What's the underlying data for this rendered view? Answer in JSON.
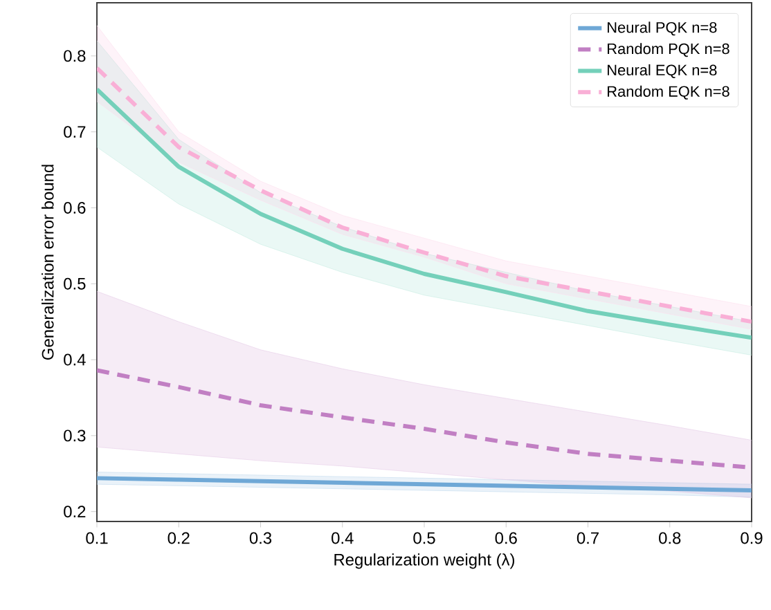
{
  "chart_data": {
    "type": "line",
    "xlabel": "Regularization weight (λ)",
    "ylabel": "Generalization error bound",
    "x": [
      0.1,
      0.2,
      0.3,
      0.4,
      0.5,
      0.6,
      0.7,
      0.8,
      0.9
    ],
    "xlim": [
      0.1,
      0.9
    ],
    "xticks": [
      0.1,
      0.2,
      0.3,
      0.4,
      0.5,
      0.6,
      0.7,
      0.8,
      0.9
    ],
    "ylim": [
      0.187,
      0.87
    ],
    "yticks": [
      0.2,
      0.3,
      0.4,
      0.5,
      0.6,
      0.7,
      0.8
    ],
    "grid": false,
    "legend": "top right",
    "marker": "none",
    "series": [
      {
        "name": "Neural PQK n=8",
        "color": "#6fa8d6",
        "line_style": "solid",
        "values": [
          0.244,
          0.242,
          0.24,
          0.238,
          0.236,
          0.234,
          0.232,
          0.23,
          0.228
        ],
        "lower": [
          0.236,
          0.234,
          0.232,
          0.23,
          0.228,
          0.226,
          0.224,
          0.222,
          0.219
        ],
        "upper": [
          0.252,
          0.25,
          0.248,
          0.246,
          0.244,
          0.242,
          0.24,
          0.238,
          0.236
        ]
      },
      {
        "name": "Random PQK n=8",
        "color": "#c17fc3",
        "line_style": "dashed",
        "values": [
          0.386,
          0.364,
          0.34,
          0.324,
          0.309,
          0.291,
          0.276,
          0.267,
          0.258
        ],
        "lower": [
          0.285,
          0.276,
          0.267,
          0.26,
          0.251,
          0.242,
          0.233,
          0.227,
          0.218
        ],
        "upper": [
          0.49,
          0.45,
          0.413,
          0.388,
          0.367,
          0.349,
          0.331,
          0.313,
          0.294
        ]
      },
      {
        "name": "Neural EQK n=8",
        "color": "#74d0ba",
        "line_style": "solid",
        "values": [
          0.756,
          0.654,
          0.592,
          0.546,
          0.513,
          0.489,
          0.464,
          0.446,
          0.429
        ],
        "lower": [
          0.68,
          0.605,
          0.552,
          0.515,
          0.485,
          0.465,
          0.445,
          0.425,
          0.406
        ],
        "upper": [
          0.82,
          0.69,
          0.62,
          0.575,
          0.54,
          0.515,
          0.49,
          0.47,
          0.45
        ]
      },
      {
        "name": "Random EQK n=8",
        "color": "#f9afd6",
        "line_style": "dashed",
        "values": [
          0.784,
          0.68,
          0.623,
          0.574,
          0.541,
          0.51,
          0.49,
          0.47,
          0.45
        ],
        "lower": [
          0.74,
          0.66,
          0.61,
          0.565,
          0.535,
          0.5,
          0.48,
          0.46,
          0.44
        ],
        "upper": [
          0.84,
          0.7,
          0.635,
          0.59,
          0.56,
          0.53,
          0.51,
          0.49,
          0.47
        ]
      }
    ]
  }
}
